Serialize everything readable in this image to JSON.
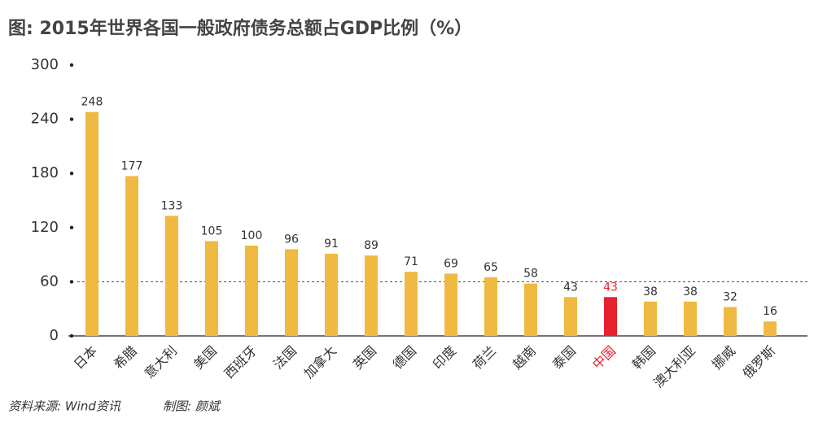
{
  "chart_data": {
    "type": "bar",
    "title": "图: 2015年世界各国一般政府债务总额占GDP比例（%）",
    "source": "资料来源: Wind资讯",
    "credit": "制图: 颜斌",
    "categories": [
      "日本",
      "希腊",
      "意大利",
      "美国",
      "西班牙",
      "法国",
      "加拿大",
      "英国",
      "德国",
      "印度",
      "荷兰",
      "越南",
      "泰国",
      "中国",
      "韩国",
      "澳大利亚",
      "挪威",
      "俄罗斯"
    ],
    "values": [
      248,
      177,
      133,
      105,
      100,
      96,
      91,
      89,
      71,
      69,
      65,
      58,
      43,
      43,
      38,
      38,
      32,
      16
    ],
    "color": "#f0b942",
    "highlight": {
      "index": 13,
      "color": "#e8212f"
    },
    "ylim": [
      0,
      300
    ],
    "yticks": [
      0,
      60,
      120,
      180,
      240,
      300
    ],
    "reference_line": 60
  }
}
